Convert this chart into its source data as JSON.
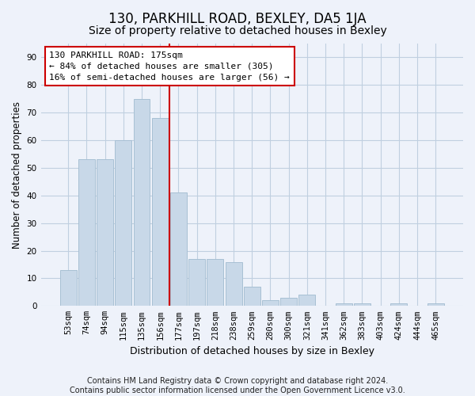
{
  "title": "130, PARKHILL ROAD, BEXLEY, DA5 1JA",
  "subtitle": "Size of property relative to detached houses in Bexley",
  "xlabel": "Distribution of detached houses by size in Bexley",
  "ylabel": "Number of detached properties",
  "categories": [
    "53sqm",
    "74sqm",
    "94sqm",
    "115sqm",
    "135sqm",
    "156sqm",
    "177sqm",
    "197sqm",
    "218sqm",
    "238sqm",
    "259sqm",
    "280sqm",
    "300sqm",
    "321sqm",
    "341sqm",
    "362sqm",
    "383sqm",
    "403sqm",
    "424sqm",
    "444sqm",
    "465sqm"
  ],
  "values": [
    13,
    53,
    53,
    60,
    75,
    68,
    41,
    17,
    17,
    16,
    7,
    2,
    3,
    4,
    0,
    1,
    1,
    0,
    1,
    0,
    1
  ],
  "bar_color": "#c8d8e8",
  "bar_edgecolor": "#a8c0d4",
  "vline_color": "#cc0000",
  "vline_x_index": 6,
  "annotation_line1": "130 PARKHILL ROAD: 175sqm",
  "annotation_line2": "← 84% of detached houses are smaller (305)",
  "annotation_line3": "16% of semi-detached houses are larger (56) →",
  "annotation_box_edgecolor": "#cc0000",
  "annotation_box_facecolor": "#ffffff",
  "ylim": [
    0,
    95
  ],
  "yticks": [
    0,
    10,
    20,
    30,
    40,
    50,
    60,
    70,
    80,
    90
  ],
  "grid_color": "#c0cfe0",
  "background_color": "#eef2fa",
  "footer": "Contains HM Land Registry data © Crown copyright and database right 2024.\nContains public sector information licensed under the Open Government Licence v3.0.",
  "title_fontsize": 12,
  "subtitle_fontsize": 10,
  "xlabel_fontsize": 9,
  "ylabel_fontsize": 8.5,
  "tick_fontsize": 7.5,
  "footer_fontsize": 7
}
